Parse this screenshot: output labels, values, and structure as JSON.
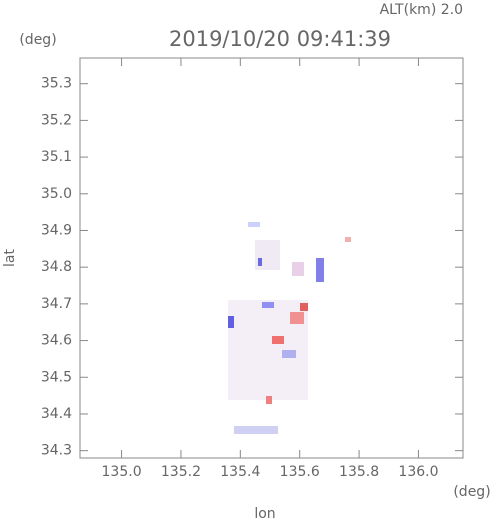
{
  "chart_data": {
    "type": "map",
    "title": "2019/10/20 09:41:39",
    "subtitle": "ALT(km) 2.0",
    "xlabel": "lon",
    "ylabel": "lat",
    "xunit": "(deg)",
    "yunit": "(deg)",
    "xlim": [
      134.86,
      136.15
    ],
    "ylim": [
      34.28,
      35.37
    ],
    "xticks": [
      {
        "value": 135.0,
        "label": "135.0"
      },
      135.2,
      135.4,
      135.6,
      135.8,
      {
        "value": 136.0,
        "label": "136.0"
      }
    ],
    "yticks": [
      34.3,
      34.4,
      34.5,
      34.6,
      34.7,
      34.8,
      34.9,
      {
        "value": 35.0,
        "label": "35.0"
      },
      35.1,
      35.2,
      35.3
    ]
  }
}
